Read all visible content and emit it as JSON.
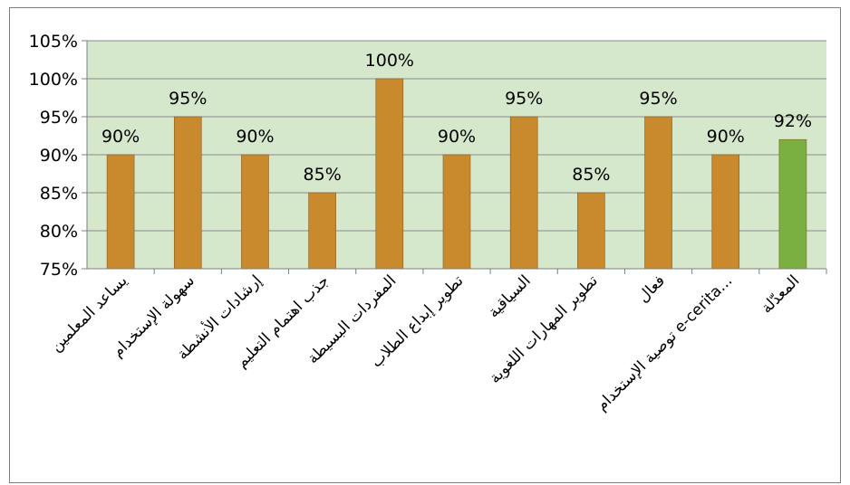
{
  "chart_data": {
    "type": "bar",
    "title": "",
    "xlabel": "",
    "ylabel": "",
    "ylim": [
      75,
      105
    ],
    "yticks": [
      75,
      80,
      85,
      90,
      95,
      100,
      105
    ],
    "ytick_labels": [
      "75%",
      "80%",
      "85%",
      "90%",
      "95%",
      "100%",
      "105%"
    ],
    "grid": true,
    "legend": "none",
    "categories": [
      "يساعد المعلمين",
      "سهولة الإستخدام",
      "إرشادات الأنشطة",
      "جذب اهتمام التعليم",
      "المفردات البسيطة",
      "تطوير إبداع الطلاب",
      "السياقية",
      "تطوير المهارات اللغوية",
      "فعال",
      "توصية الإستخدام e-cerita...",
      "المعدّلة"
    ],
    "values": [
      90,
      95,
      90,
      85,
      100,
      90,
      95,
      85,
      95,
      90,
      92
    ],
    "data_labels": [
      "90%",
      "95%",
      "90%",
      "85%",
      "100%",
      "90%",
      "95%",
      "85%",
      "95%",
      "90%",
      "92%"
    ],
    "colors": {
      "bar": "#c98a2e",
      "highlight_bar": "#79b041",
      "highlight_index": 10,
      "plot_background": "#d6e8cc",
      "grid": "#8a8a8a",
      "axis": "#7f7f7f"
    }
  }
}
